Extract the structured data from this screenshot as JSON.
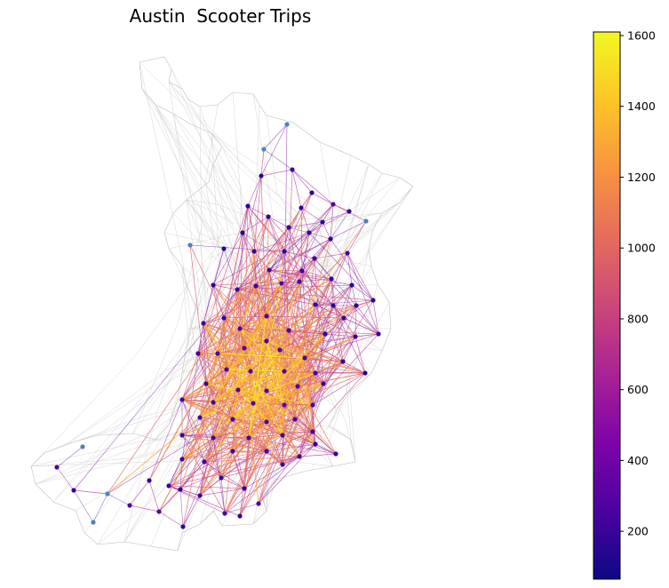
{
  "chart_data": {
    "type": "network_map",
    "title": "Austin  Scooter Trips",
    "colorbar": {
      "colormap": "plasma",
      "min": 65,
      "max": 1610,
      "ticks": [
        200,
        400,
        600,
        800,
        1000,
        1200,
        1400,
        1600
      ],
      "tick_labels": [
        "200",
        "400",
        "600",
        "800",
        "1000",
        "1200",
        "1400",
        "1600"
      ]
    },
    "nodes_approx_count": 120,
    "edges_colored_by": "trip count"
  }
}
